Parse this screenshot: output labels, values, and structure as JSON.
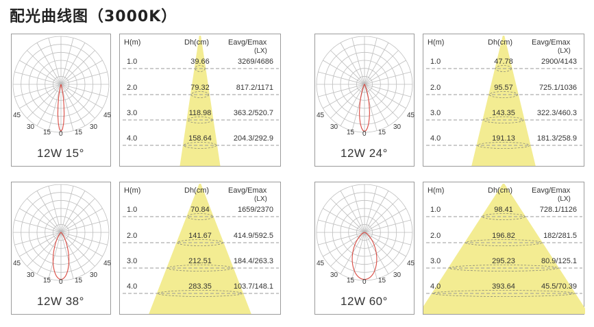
{
  "title": "配光曲线图（3000K）",
  "angle_labels": [
    "45",
    "30",
    "15",
    "0",
    "15",
    "30",
    "45"
  ],
  "table_headers": {
    "h": "H(m)",
    "dh": "Dh(cm)",
    "e": "Eavg/Emax",
    "unit": "(LX)"
  },
  "colors": {
    "beam": "#f3ec92",
    "curve": "#d9473f",
    "grid": "#bdbdbd",
    "border": "#9a9a9a",
    "rule": "#9a9a9a"
  },
  "chart_data": [
    {
      "type": "table",
      "model": "12W 15°",
      "beam_angle_deg": 15,
      "rows": [
        {
          "h": "1.0",
          "dh": "39.66",
          "e": "3269/4686"
        },
        {
          "h": "2.0",
          "dh": "79.32",
          "e": "817.2/1171"
        },
        {
          "h": "3.0",
          "dh": "118.98",
          "e": "363.2/520.7"
        },
        {
          "h": "4.0",
          "dh": "158.64",
          "e": "204.3/292.9"
        }
      ]
    },
    {
      "type": "table",
      "model": "12W 24°",
      "beam_angle_deg": 24,
      "rows": [
        {
          "h": "1.0",
          "dh": "47.78",
          "e": "2900/4143"
        },
        {
          "h": "2.0",
          "dh": "95.57",
          "e": "725.1/1036"
        },
        {
          "h": "3.0",
          "dh": "143.35",
          "e": "322.3/460.3"
        },
        {
          "h": "4.0",
          "dh": "191.13",
          "e": "181.3/258.9"
        }
      ]
    },
    {
      "type": "table",
      "model": "12W 38°",
      "beam_angle_deg": 38,
      "rows": [
        {
          "h": "1.0",
          "dh": "70.84",
          "e": "1659/2370"
        },
        {
          "h": "2.0",
          "dh": "141.67",
          "e": "414.9/592.5"
        },
        {
          "h": "3.0",
          "dh": "212.51",
          "e": "184.4/263.3"
        },
        {
          "h": "4.0",
          "dh": "283.35",
          "e": "103.7/148.1"
        }
      ]
    },
    {
      "type": "table",
      "model": "12W 60°",
      "beam_angle_deg": 60,
      "rows": [
        {
          "h": "1.0",
          "dh": "98.41",
          "e": "728.1/1126"
        },
        {
          "h": "2.0",
          "dh": "196.82",
          "e": "182/281.5"
        },
        {
          "h": "3.0",
          "dh": "295.23",
          "e": "80.9/125.1"
        },
        {
          "h": "4.0",
          "dh": "393.64",
          "e": "45.5/70.39"
        }
      ]
    }
  ]
}
